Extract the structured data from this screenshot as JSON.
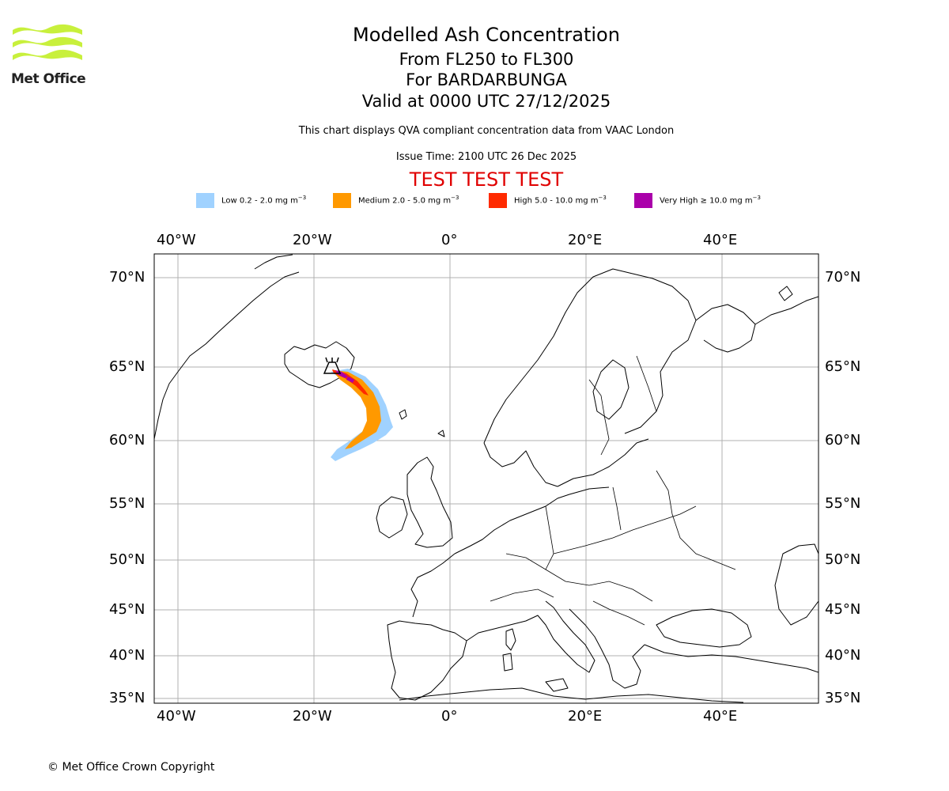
{
  "logo": {
    "text": "Met Office",
    "color": "#c8f03c"
  },
  "header": {
    "title": "Modelled Ash Concentration",
    "levels": "From FL250 to FL300",
    "volcano": "For BARDARBUNGA",
    "valid": "Valid at 0000 UTC 27/12/2025",
    "description": "This chart displays QVA compliant concentration data from VAAC London",
    "issue_time": "Issue Time: 2100 UTC 26 Dec 2025",
    "test_banner": "TEST TEST TEST"
  },
  "legend": [
    {
      "label": "Low 0.2 - 2.0 mg m",
      "exp": "−3",
      "color": "#a0d2ff"
    },
    {
      "label": "Medium 2.0 - 5.0 mg m",
      "exp": "−3",
      "color": "#ff9900"
    },
    {
      "label": "High 5.0 - 10.0 mg m",
      "exp": "−3",
      "color": "#ff2a00"
    },
    {
      "label": "Very High ≥ 10.0 mg m",
      "exp": "−3",
      "color": "#aa00aa"
    }
  ],
  "axes": {
    "lon_labels": [
      "40°W",
      "20°W",
      "0°",
      "20°E",
      "40°E"
    ],
    "lat_labels": [
      "70°N",
      "65°N",
      "60°N",
      "55°N",
      "50°N",
      "45°N",
      "40°N",
      "35°N"
    ]
  },
  "footer": {
    "copyright": "© Met Office Crown Copyright"
  }
}
